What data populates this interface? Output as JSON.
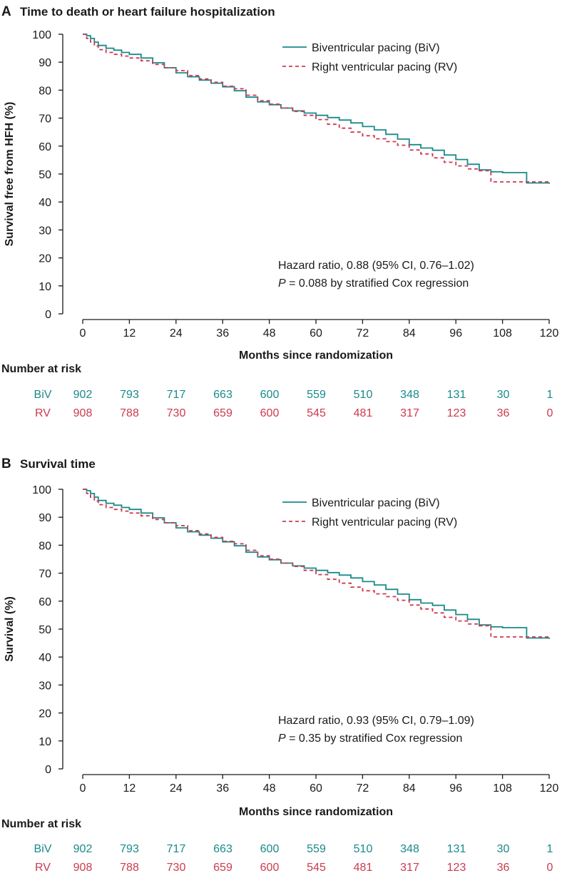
{
  "colors": {
    "biv": "#1a8a8a",
    "rv": "#cc3a50",
    "axis": "#1a1a1a"
  },
  "chart_data": [
    {
      "type": "line",
      "panel_letter": "A",
      "title": "Time to death or heart failure hospitalization",
      "xlabel": "Months since randomization",
      "ylabel": "Survival free from HFH (%)",
      "xlim": [
        0,
        120
      ],
      "ylim": [
        0,
        100
      ],
      "x_ticks": [
        0,
        12,
        24,
        36,
        48,
        60,
        72,
        84,
        96,
        108,
        120
      ],
      "y_ticks": [
        0,
        10,
        20,
        30,
        40,
        50,
        60,
        70,
        80,
        90,
        100
      ],
      "legend_position": "top-right",
      "series": [
        {
          "name": "Biventricular pacing (BiV)",
          "key": "biv",
          "style": "solid",
          "x": [
            0,
            1,
            2,
            3,
            4,
            6,
            8,
            10,
            12,
            15,
            18,
            21,
            24,
            27,
            30,
            33,
            36,
            39,
            42,
            45,
            48,
            51,
            54,
            57,
            60,
            63,
            66,
            69,
            72,
            75,
            78,
            81,
            84,
            87,
            90,
            93,
            96,
            99,
            102,
            105,
            108,
            111,
            114,
            114.2,
            120
          ],
          "y": [
            100,
            99.5,
            98.5,
            97.2,
            96,
            95,
            94.3,
            93.5,
            92.8,
            91.5,
            89.8,
            88,
            86.2,
            84.8,
            83.6,
            82.5,
            81.2,
            79.8,
            77.5,
            75.8,
            74.8,
            73.6,
            72.6,
            71.8,
            71,
            70.2,
            69.3,
            68.3,
            67,
            65.8,
            64.2,
            62.5,
            60.5,
            59.3,
            58.5,
            56.8,
            55.2,
            53.5,
            51.5,
            50.8,
            50.5,
            50.5,
            50.5,
            46.8,
            46.5
          ]
        },
        {
          "name": "Right ventricular pacing (RV)",
          "key": "rv",
          "style": "dashed",
          "x": [
            0,
            1,
            2,
            3,
            4,
            6,
            8,
            10,
            12,
            15,
            18,
            21,
            24,
            27,
            30,
            33,
            36,
            39,
            42,
            45,
            48,
            51,
            54,
            57,
            60,
            63,
            66,
            69,
            72,
            75,
            78,
            81,
            84,
            87,
            90,
            93,
            96,
            99,
            102,
            105,
            108,
            111,
            114,
            120
          ],
          "y": [
            100,
            98.5,
            97.2,
            95.8,
            94.5,
            93.5,
            92.8,
            92.2,
            91.5,
            90.5,
            89.2,
            88,
            87,
            85.2,
            84,
            82.8,
            81.4,
            80.5,
            78.2,
            76.2,
            75,
            73.6,
            72.4,
            71,
            69.5,
            67.8,
            66.4,
            65,
            63.7,
            62.6,
            61.6,
            60.3,
            58.6,
            57.2,
            55.8,
            54.2,
            52.9,
            51.8,
            51.2,
            47.2,
            47.2,
            47.2,
            47.2,
            47.2
          ]
        }
      ],
      "annotation": {
        "hr_text": "Hazard ratio, 0.88 (95% CI, 0.76–1.02)",
        "p_label": "P",
        "p_text": " = 0.088 by stratified Cox regression"
      },
      "risk_table": {
        "title": "Number at risk",
        "rows": [
          {
            "label": "BiV",
            "key": "biv",
            "values": [
              "902",
              "793",
              "717",
              "663",
              "600",
              "559",
              "510",
              "348",
              "131",
              "30",
              "1"
            ]
          },
          {
            "label": "RV",
            "key": "rv",
            "values": [
              "908",
              "788",
              "730",
              "659",
              "600",
              "545",
              "481",
              "317",
              "123",
              "36",
              "0"
            ]
          }
        ]
      }
    },
    {
      "type": "line",
      "panel_letter": "B",
      "title": "Survival time",
      "xlabel": "Months since randomization",
      "ylabel": "Survival (%)",
      "xlim": [
        0,
        120
      ],
      "ylim": [
        0,
        100
      ],
      "x_ticks": [
        0,
        12,
        24,
        36,
        48,
        60,
        72,
        84,
        96,
        108,
        120
      ],
      "y_ticks": [
        0,
        10,
        20,
        30,
        40,
        50,
        60,
        70,
        80,
        90,
        100
      ],
      "legend_position": "top-right",
      "series": [
        {
          "name": "Biventricular pacing (BiV)",
          "key": "biv",
          "style": "solid",
          "x": [
            0,
            1,
            2,
            3,
            4,
            6,
            8,
            10,
            12,
            15,
            18,
            21,
            24,
            27,
            30,
            33,
            36,
            39,
            42,
            45,
            48,
            51,
            54,
            57,
            60,
            63,
            66,
            69,
            72,
            75,
            78,
            81,
            84,
            87,
            90,
            93,
            96,
            99,
            102,
            105,
            108,
            111,
            114,
            114.2,
            120
          ],
          "y": [
            100,
            99.5,
            98.5,
            97.2,
            96,
            95,
            94.3,
            93.5,
            92.8,
            91.5,
            89.8,
            88,
            86.2,
            84.8,
            83.6,
            82.5,
            81.2,
            79.8,
            77.5,
            75.8,
            74.8,
            73.6,
            72.6,
            71.8,
            71,
            70.2,
            69.3,
            68.3,
            67,
            65.8,
            64.2,
            62.5,
            60.5,
            59.3,
            58.5,
            56.8,
            55.2,
            53.5,
            51.5,
            50.8,
            50.5,
            50.5,
            50.5,
            46.8,
            46.5
          ]
        },
        {
          "name": "Right ventricular pacing (RV)",
          "key": "rv",
          "style": "dashed",
          "x": [
            0,
            1,
            2,
            3,
            4,
            6,
            8,
            10,
            12,
            15,
            18,
            21,
            24,
            27,
            30,
            33,
            36,
            39,
            42,
            45,
            48,
            51,
            54,
            57,
            60,
            63,
            66,
            69,
            72,
            75,
            78,
            81,
            84,
            87,
            90,
            93,
            96,
            99,
            102,
            105,
            108,
            111,
            114,
            120
          ],
          "y": [
            100,
            98.5,
            97.2,
            95.8,
            94.5,
            93.5,
            92.8,
            92.2,
            91.5,
            90.5,
            89.2,
            88,
            87,
            85.2,
            84,
            82.8,
            81.4,
            80.5,
            78.2,
            76.2,
            75,
            73.6,
            72.4,
            71,
            69.5,
            67.8,
            66.4,
            65,
            63.7,
            62.6,
            61.6,
            60.3,
            58.6,
            57.2,
            55.8,
            54.2,
            52.9,
            51.8,
            51.2,
            47.2,
            47.2,
            47.2,
            47.2,
            47.2
          ]
        }
      ],
      "annotation": {
        "hr_text": "Hazard ratio, 0.93 (95% CI, 0.79–1.09)",
        "p_label": "P",
        "p_text": " = 0.35 by stratified Cox regression"
      },
      "risk_table": {
        "title": "Number at risk",
        "rows": [
          {
            "label": "BiV",
            "key": "biv",
            "values": [
              "902",
              "793",
              "717",
              "663",
              "600",
              "559",
              "510",
              "348",
              "131",
              "30",
              "1"
            ]
          },
          {
            "label": "RV",
            "key": "rv",
            "values": [
              "908",
              "788",
              "730",
              "659",
              "600",
              "545",
              "481",
              "317",
              "123",
              "36",
              "0"
            ]
          }
        ]
      }
    }
  ]
}
